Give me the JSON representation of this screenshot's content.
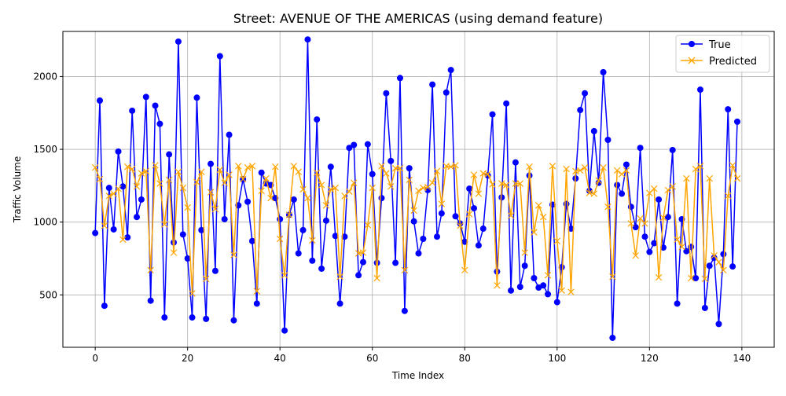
{
  "chart_data": {
    "type": "line",
    "title": "Street: AVENUE OF THE AMERICAS (using demand feature)",
    "xlabel": "Time Index",
    "ylabel": "Traffic Volume",
    "xlim": [
      -7,
      147
    ],
    "ylim": [
      140,
      2310
    ],
    "xticks": [
      0,
      20,
      40,
      60,
      80,
      100,
      120,
      140
    ],
    "yticks": [
      500,
      1000,
      1500,
      2000
    ],
    "grid": true,
    "legend_position": "top-right",
    "series": [
      {
        "name": "True",
        "color": "#0000ff",
        "marker": "circle",
        "values": [
          925,
          1835,
          425,
          1235,
          950,
          1485,
          1245,
          895,
          1765,
          1035,
          1155,
          1860,
          460,
          1800,
          1675,
          345,
          1465,
          860,
          2240,
          915,
          750,
          345,
          1855,
          945,
          335,
          1400,
          665,
          2140,
          1020,
          1600,
          325,
          1115,
          1295,
          1140,
          870,
          440,
          1340,
          1265,
          1255,
          1165,
          1020,
          255,
          1050,
          1155,
          785,
          945,
          2255,
          735,
          1705,
          680,
          1010,
          1380,
          905,
          440,
          900,
          1510,
          1530,
          635,
          725,
          1535,
          1330,
          720,
          1165,
          1885,
          1420,
          720,
          1990,
          390,
          1370,
          1005,
          785,
          885,
          1220,
          1945,
          900,
          1060,
          1890,
          2045,
          1040,
          990,
          865,
          1230,
          1095,
          840,
          955,
          1320,
          1740,
          660,
          1170,
          1815,
          530,
          1410,
          555,
          700,
          1320,
          615,
          550,
          565,
          505,
          1120,
          450,
          690,
          1125,
          955,
          1300,
          1770,
          1885,
          1215,
          1625,
          1270,
          2030,
          1565,
          205,
          1255,
          1195,
          1395,
          1105,
          965,
          1510,
          900,
          795,
          855,
          1155,
          825,
          1035,
          1495,
          440,
          1020,
          800,
          830,
          615,
          1910,
          410,
          700,
          755,
          300,
          780,
          1775,
          695,
          1690
        ]
      },
      {
        "name": "Predicted",
        "color": "#ffa500",
        "marker": "x",
        "values": [
          1375,
          1295,
          975,
          1180,
          1195,
          1230,
          880,
          1380,
          1365,
          1245,
          1335,
          1350,
          670,
          1390,
          1265,
          985,
          1290,
          790,
          1345,
          1235,
          1100,
          510,
          1275,
          1345,
          610,
          1205,
          1090,
          1360,
          1270,
          1325,
          775,
          1385,
          1295,
          1375,
          1385,
          525,
          1215,
          1300,
          1165,
          1380,
          885,
          635,
          1050,
          1385,
          1345,
          1225,
          1165,
          875,
          1340,
          1255,
          1115,
          1225,
          1235,
          625,
          1180,
          1210,
          1270,
          785,
          790,
          980,
          1235,
          615,
          1385,
          1335,
          1245,
          1370,
          1370,
          670,
          1290,
          1080,
          1215,
          1235,
          1240,
          1270,
          1350,
          1125,
          1385,
          1380,
          1390,
          975,
          670,
          1055,
          1325,
          1195,
          1335,
          1330,
          1260,
          565,
          1265,
          1255,
          1045,
          1265,
          1265,
          790,
          1380,
          930,
          1115,
          1035,
          635,
          1385,
          870,
          530,
          1365,
          520,
          1350,
          1355,
          1375,
          1200,
          1195,
          1285,
          1375,
          1105,
          625,
          1355,
          1330,
          1355,
          990,
          770,
          1025,
          990,
          1200,
          1230,
          620,
          1030,
          1220,
          1245,
          880,
          830,
          1300,
          615,
          1365,
          1385,
          610,
          1300,
          770,
          725,
          670,
          1180,
          1390,
          1300
        ]
      }
    ]
  }
}
